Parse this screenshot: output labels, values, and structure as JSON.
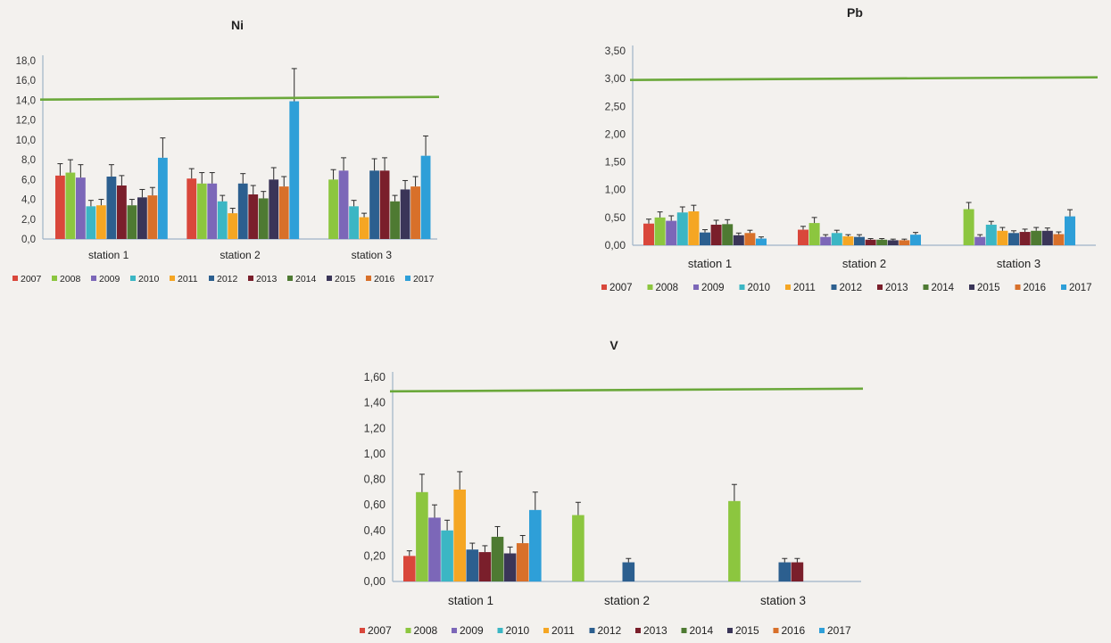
{
  "legend_years": [
    "2007",
    "2008",
    "2009",
    "2010",
    "2011",
    "2012",
    "2013",
    "2014",
    "2015",
    "2016",
    "2017"
  ],
  "colors": [
    "#d9473b",
    "#8cc63f",
    "#7c67b8",
    "#3bb6c4",
    "#f5a623",
    "#2c5f8f",
    "#7a1f2b",
    "#4e7a32",
    "#3a3558",
    "#d8702a",
    "#2e9fd8"
  ],
  "limit_color": "#6aa83a",
  "chart_data": [
    {
      "type": "bar",
      "title": "Ni",
      "categories": [
        "station 1",
        "station 2",
        "station 3"
      ],
      "ylim": [
        0,
        18
      ],
      "yticks": [
        "0,0",
        "2,0",
        "4,0",
        "6,0",
        "8,0",
        "10,0",
        "12,0",
        "14,0",
        "16,0",
        "18,0"
      ],
      "limit_line": 14.2,
      "series": [
        {
          "name": "2007",
          "values": [
            6.4,
            6.1,
            null
          ],
          "errors": [
            1.2,
            1.0,
            null
          ]
        },
        {
          "name": "2008",
          "values": [
            6.7,
            5.6,
            6.0
          ],
          "errors": [
            1.3,
            1.1,
            1.0
          ]
        },
        {
          "name": "2009",
          "values": [
            6.2,
            5.6,
            6.9
          ],
          "errors": [
            1.3,
            1.1,
            1.3
          ]
        },
        {
          "name": "2010",
          "values": [
            3.3,
            3.8,
            3.3
          ],
          "errors": [
            0.6,
            0.6,
            0.6
          ]
        },
        {
          "name": "2011",
          "values": [
            3.4,
            2.6,
            2.2
          ],
          "errors": [
            0.6,
            0.5,
            0.4
          ]
        },
        {
          "name": "2012",
          "values": [
            6.3,
            5.6,
            6.9
          ],
          "errors": [
            1.2,
            1.0,
            1.2
          ]
        },
        {
          "name": "2013",
          "values": [
            5.4,
            4.5,
            6.9
          ],
          "errors": [
            1.0,
            0.9,
            1.3
          ]
        },
        {
          "name": "2014",
          "values": [
            3.4,
            4.1,
            3.8
          ],
          "errors": [
            0.6,
            0.7,
            0.6
          ]
        },
        {
          "name": "2015",
          "values": [
            4.2,
            6.0,
            5.0
          ],
          "errors": [
            0.8,
            1.2,
            0.9
          ]
        },
        {
          "name": "2016",
          "values": [
            4.4,
            5.3,
            5.3
          ],
          "errors": [
            0.8,
            1.0,
            1.0
          ]
        },
        {
          "name": "2017",
          "values": [
            8.2,
            13.9,
            8.4
          ],
          "errors": [
            2.0,
            3.3,
            2.0
          ]
        }
      ]
    },
    {
      "type": "bar",
      "title": "Pb",
      "categories": [
        "station 1",
        "station 2",
        "station 3"
      ],
      "ylim": [
        0,
        3.5
      ],
      "yticks": [
        "0,00",
        "0,50",
        "1,00",
        "1,50",
        "2,00",
        "2,50",
        "3,00",
        "3,50"
      ],
      "limit_line": 3.0,
      "series": [
        {
          "name": "2007",
          "values": [
            0.39,
            0.28,
            null
          ],
          "errors": [
            0.08,
            0.06,
            null
          ]
        },
        {
          "name": "2008",
          "values": [
            0.5,
            0.4,
            0.65
          ],
          "errors": [
            0.1,
            0.1,
            0.12
          ]
        },
        {
          "name": "2009",
          "values": [
            0.44,
            0.15,
            0.15
          ],
          "errors": [
            0.09,
            0.04,
            0.04
          ]
        },
        {
          "name": "2010",
          "values": [
            0.59,
            0.22,
            0.37
          ],
          "errors": [
            0.1,
            0.05,
            0.06
          ]
        },
        {
          "name": "2011",
          "values": [
            0.61,
            0.16,
            0.26
          ],
          "errors": [
            0.11,
            0.03,
            0.06
          ]
        },
        {
          "name": "2012",
          "values": [
            0.23,
            0.15,
            0.22
          ],
          "errors": [
            0.05,
            0.04,
            0.04
          ]
        },
        {
          "name": "2013",
          "values": [
            0.37,
            0.1,
            0.24
          ],
          "errors": [
            0.08,
            0.02,
            0.05
          ]
        },
        {
          "name": "2014",
          "values": [
            0.38,
            0.1,
            0.26
          ],
          "errors": [
            0.08,
            0.02,
            0.06
          ]
        },
        {
          "name": "2015",
          "values": [
            0.18,
            0.09,
            0.26
          ],
          "errors": [
            0.04,
            0.02,
            0.05
          ]
        },
        {
          "name": "2016",
          "values": [
            0.22,
            0.09,
            0.2
          ],
          "errors": [
            0.05,
            0.02,
            0.04
          ]
        },
        {
          "name": "2017",
          "values": [
            0.12,
            0.19,
            0.52
          ],
          "errors": [
            0.03,
            0.04,
            0.12
          ]
        }
      ]
    },
    {
      "type": "bar",
      "title": "V",
      "categories": [
        "station 1",
        "station 2",
        "station 3"
      ],
      "ylim": [
        0,
        1.6
      ],
      "yticks": [
        "0,00",
        "0,20",
        "0,40",
        "0,60",
        "0,80",
        "1,00",
        "1,20",
        "1,40",
        "1,60"
      ],
      "limit_line": 1.5,
      "series": [
        {
          "name": "2007",
          "values": [
            0.2,
            null,
            null
          ],
          "errors": [
            0.04,
            null,
            null
          ]
        },
        {
          "name": "2008",
          "values": [
            0.7,
            0.52,
            0.63
          ],
          "errors": [
            0.14,
            0.1,
            0.13
          ]
        },
        {
          "name": "2009",
          "values": [
            0.5,
            null,
            null
          ],
          "errors": [
            0.1,
            null,
            null
          ]
        },
        {
          "name": "2010",
          "values": [
            0.4,
            null,
            null
          ],
          "errors": [
            0.08,
            null,
            null
          ]
        },
        {
          "name": "2011",
          "values": [
            0.72,
            null,
            null
          ],
          "errors": [
            0.14,
            null,
            null
          ]
        },
        {
          "name": "2012",
          "values": [
            0.25,
            0.15,
            0.15
          ],
          "errors": [
            0.05,
            0.03,
            0.03
          ]
        },
        {
          "name": "2013",
          "values": [
            0.23,
            null,
            0.15
          ],
          "errors": [
            0.05,
            null,
            0.03
          ]
        },
        {
          "name": "2014",
          "values": [
            0.35,
            null,
            null
          ],
          "errors": [
            0.08,
            null,
            null
          ]
        },
        {
          "name": "2015",
          "values": [
            0.22,
            null,
            null
          ],
          "errors": [
            0.05,
            null,
            null
          ]
        },
        {
          "name": "2016",
          "values": [
            0.3,
            null,
            null
          ],
          "errors": [
            0.06,
            null,
            null
          ]
        },
        {
          "name": "2017",
          "values": [
            0.56,
            null,
            null
          ],
          "errors": [
            0.14,
            null,
            null
          ]
        }
      ]
    }
  ]
}
